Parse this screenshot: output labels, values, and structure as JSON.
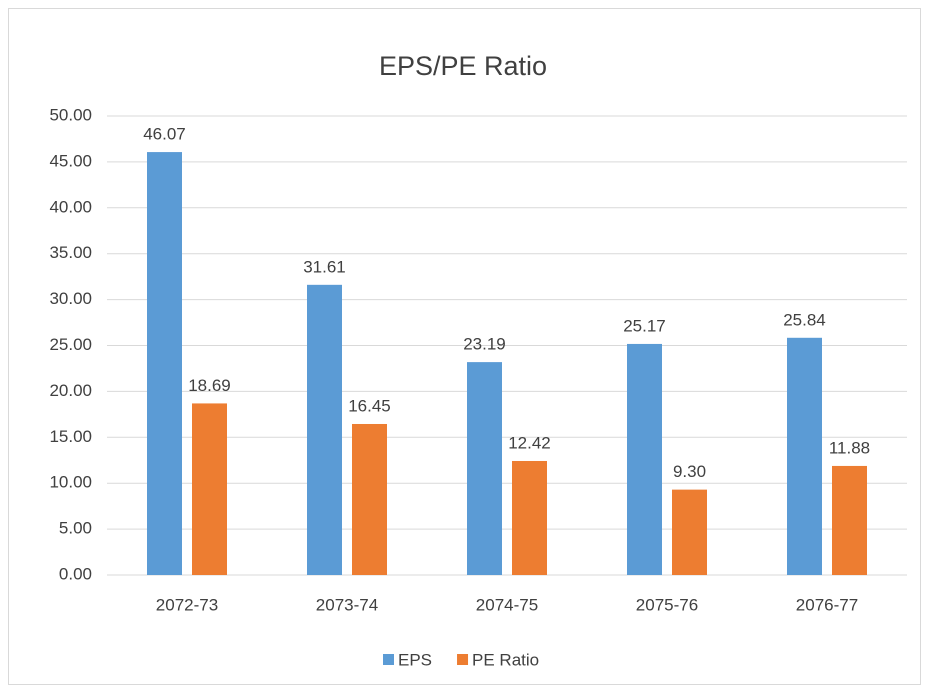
{
  "chart_data": {
    "type": "bar",
    "title": "EPS/PE Ratio",
    "categories": [
      "2072-73",
      "2073-74",
      "2074-75",
      "2075-76",
      "2076-77"
    ],
    "series": [
      {
        "name": "EPS",
        "color": "#5b9bd5",
        "values": [
          46.07,
          31.61,
          23.19,
          25.17,
          25.84
        ],
        "value_labels": [
          "46.07",
          "31.61",
          "23.19",
          "25.17",
          "25.84"
        ]
      },
      {
        "name": "PE Ratio",
        "color": "#ed7d31",
        "values": [
          18.69,
          16.45,
          12.42,
          9.3,
          11.88
        ],
        "value_labels": [
          "18.69",
          "16.45",
          "12.42",
          "9.30",
          "11.88"
        ]
      }
    ],
    "ylim": [
      0,
      50
    ],
    "yticks": [
      {
        "value": 0,
        "label": "0.00"
      },
      {
        "value": 5,
        "label": "5.00"
      },
      {
        "value": 10,
        "label": "10.00"
      },
      {
        "value": 15,
        "label": "15.00"
      },
      {
        "value": 20,
        "label": "20.00"
      },
      {
        "value": 25,
        "label": "25.00"
      },
      {
        "value": 30,
        "label": "30.00"
      },
      {
        "value": 35,
        "label": "35.00"
      },
      {
        "value": 40,
        "label": "40.00"
      },
      {
        "value": 45,
        "label": "45.00"
      },
      {
        "value": 50,
        "label": "50.00"
      }
    ],
    "grid": true,
    "legend": "bottom"
  }
}
